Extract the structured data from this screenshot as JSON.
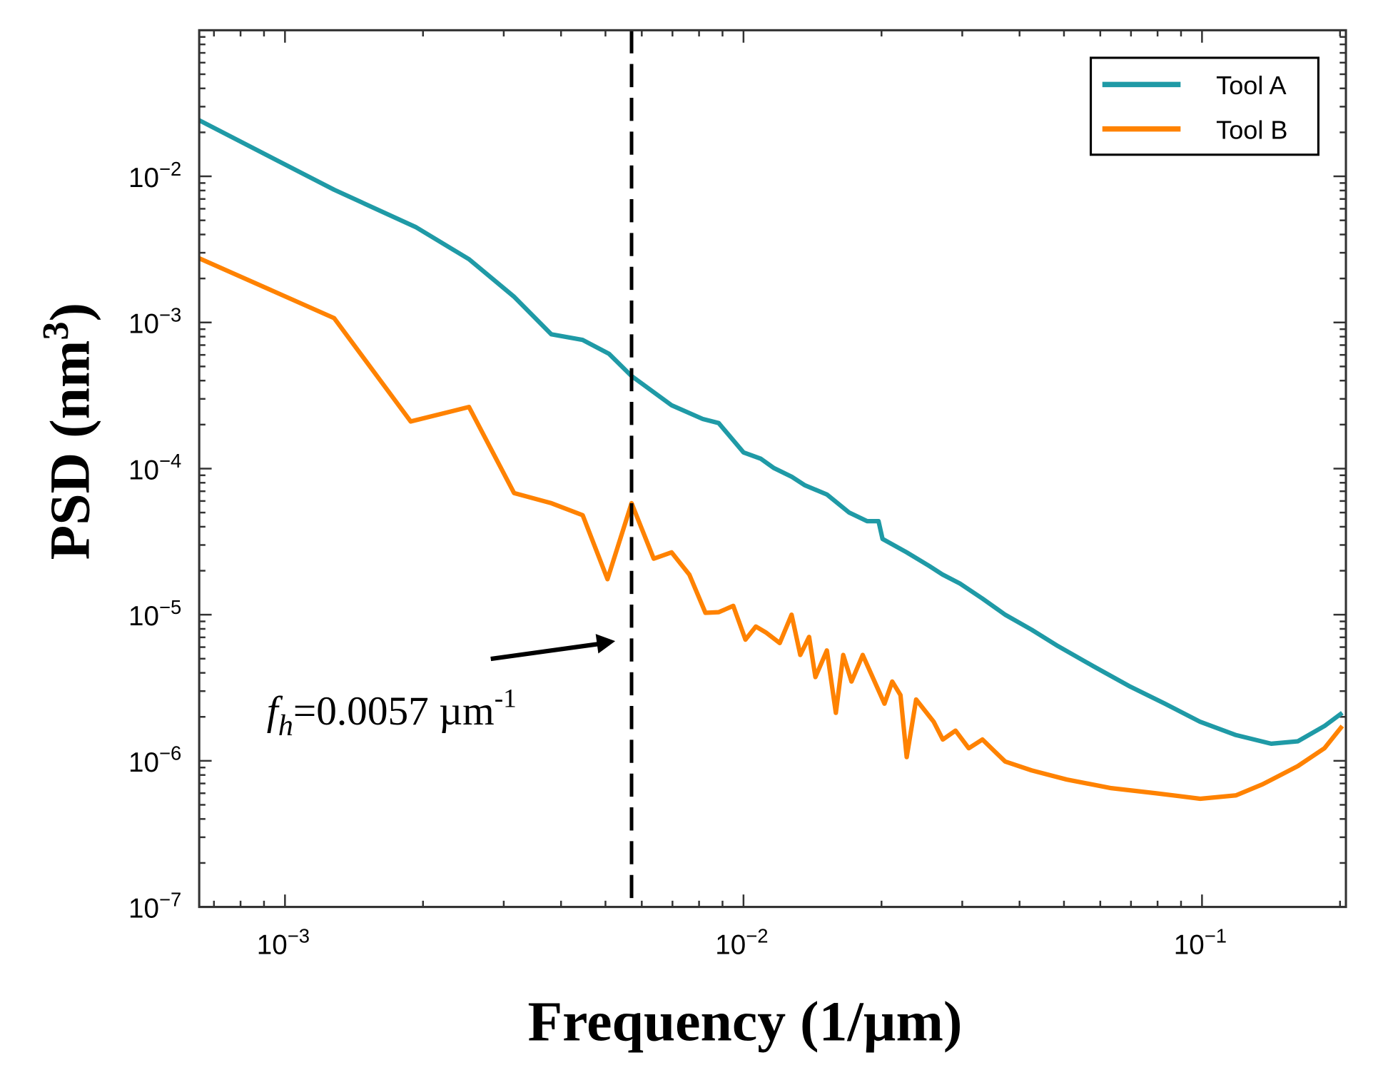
{
  "chart_data": {
    "type": "line",
    "xscale": "log",
    "yscale": "log",
    "xlabel": "Frequency (1/µm)",
    "ylabel_main": "PSD (nm",
    "ylabel_sup": "3",
    "ylabel_close": ")",
    "xlim": [
      0.00065,
      0.206
    ],
    "ylim": [
      1e-07,
      0.1
    ],
    "x_ticks": [
      {
        "value": 0.001,
        "base": "10",
        "exp": "−3"
      },
      {
        "value": 0.01,
        "base": "10",
        "exp": "−2"
      },
      {
        "value": 0.1,
        "base": "10",
        "exp": "−1"
      }
    ],
    "y_ticks": [
      {
        "value": 0.01,
        "base": "10",
        "exp": "−2"
      },
      {
        "value": 0.001,
        "base": "10",
        "exp": "−3"
      },
      {
        "value": 0.0001,
        "base": "10",
        "exp": "−4"
      },
      {
        "value": 1e-05,
        "base": "10",
        "exp": "−5"
      },
      {
        "value": 1e-06,
        "base": "10",
        "exp": "−6"
      },
      {
        "value": 1e-07,
        "base": "10",
        "exp": "−7"
      }
    ],
    "legend_position": "top-right",
    "series": [
      {
        "name": "Tool A",
        "color": "#1f9aa6",
        "x": [
          0.00065,
          0.00128,
          0.00193,
          0.00252,
          0.00316,
          0.00381,
          0.00446,
          0.00509,
          0.0057,
          0.00697,
          0.00814,
          0.00883,
          0.01,
          0.0109,
          0.01164,
          0.01273,
          0.0136,
          0.0152,
          0.017,
          0.0186,
          0.0197,
          0.0201,
          0.0227,
          0.0254,
          0.0272,
          0.0297,
          0.0332,
          0.0372,
          0.0425,
          0.0485,
          0.058,
          0.0693,
          0.083,
          0.0991,
          0.1186,
          0.1416,
          0.1618,
          0.185,
          0.2023
        ],
        "y": [
          0.0242,
          0.0081,
          0.00449,
          0.00271,
          0.0015,
          0.00083,
          0.00076,
          0.00061,
          0.00043,
          0.000271,
          0.000219,
          0.000205,
          0.000129,
          0.000117,
          0.000101,
          8.8e-05,
          7.7e-05,
          6.65e-05,
          5e-05,
          4.37e-05,
          4.37e-05,
          3.3e-05,
          2.67e-05,
          2.16e-05,
          1.88e-05,
          1.63e-05,
          1.29e-05,
          1e-05,
          7.9e-06,
          6.1e-06,
          4.43e-06,
          3.25e-06,
          2.46e-06,
          1.85e-06,
          1.5e-06,
          1.31e-06,
          1.36e-06,
          1.73e-06,
          2.13e-06
        ]
      },
      {
        "name": "Tool B",
        "color": "#ff8200",
        "x": [
          0.00065,
          0.00128,
          0.00188,
          0.00252,
          0.00316,
          0.00381,
          0.00446,
          0.00505,
          0.0057,
          0.00637,
          0.00697,
          0.00762,
          0.00826,
          0.00883,
          0.0095,
          0.0101,
          0.01064,
          0.0112,
          0.012,
          0.01273,
          0.0133,
          0.0139,
          0.01435,
          0.0152,
          0.0159,
          0.0165,
          0.0172,
          0.0182,
          0.0203,
          0.0211,
          0.022,
          0.0227,
          0.0238,
          0.026,
          0.0272,
          0.029,
          0.031,
          0.0332,
          0.0372,
          0.0425,
          0.0507,
          0.0634,
          0.0792,
          0.0991,
          0.1186,
          0.1355,
          0.1618,
          0.185,
          0.2023
        ],
        "y": [
          0.00275,
          0.00107,
          0.00021,
          0.000264,
          6.8e-05,
          5.8e-05,
          4.8e-05,
          1.75e-05,
          5.8e-05,
          2.42e-05,
          2.67e-05,
          1.88e-05,
          1.03e-05,
          1.04e-05,
          1.15e-05,
          6.75e-06,
          8.3e-06,
          7.55e-06,
          6.4e-06,
          1e-05,
          5.3e-06,
          7.05e-06,
          3.74e-06,
          5.7e-06,
          2.13e-06,
          5.3e-06,
          3.49e-06,
          5.3e-06,
          2.46e-06,
          3.49e-06,
          2.82e-06,
          1.06e-06,
          2.63e-06,
          1.85e-06,
          1.4e-06,
          1.61e-06,
          1.22e-06,
          1.4e-06,
          9.9e-07,
          8.6e-07,
          7.45e-07,
          6.5e-07,
          6e-07,
          5.5e-07,
          5.8e-07,
          6.9e-07,
          9.2e-07,
          1.22e-06,
          1.73e-06
        ]
      }
    ],
    "vline": {
      "x": 0.0057,
      "style": "dashed",
      "color": "#000000"
    },
    "annotation": {
      "f": "f",
      "sub": "h",
      "text": "=0.0057 µm",
      "sup": "-1"
    }
  }
}
